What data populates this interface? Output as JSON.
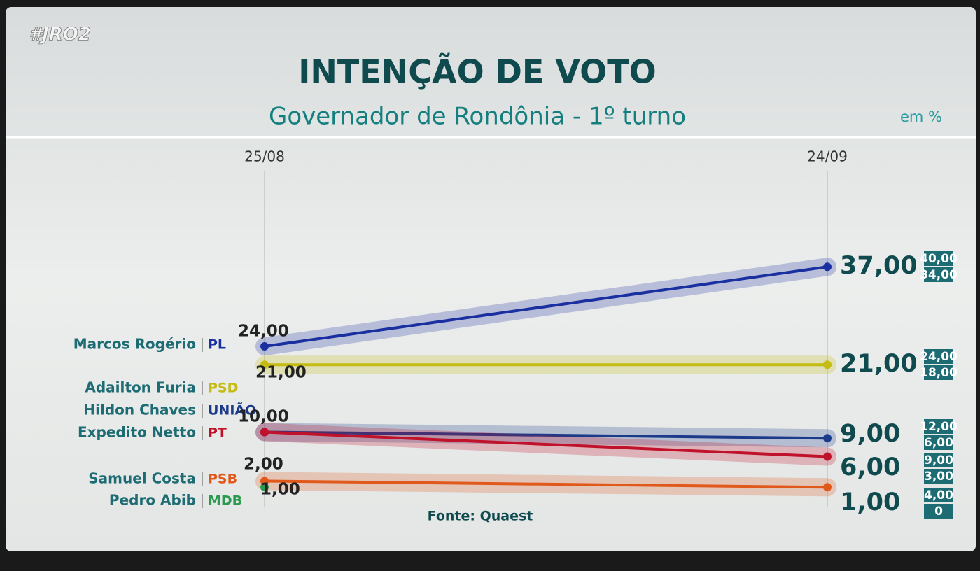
{
  "hashtag": "#JRO2",
  "chart_data": {
    "type": "line",
    "title": "INTENÇÃO DE VOTO",
    "subtitle": "Governador de Rondônia - 1º turno",
    "unit": "em %",
    "source": "Fonte: Quaest",
    "x": [
      "25/08",
      "24/09"
    ],
    "ylim": [
      0,
      40
    ],
    "grid": true,
    "series": [
      {
        "name": "Marcos Rogério",
        "party": "PL",
        "color": "#1a2fa0",
        "values": [
          24,
          37
        ],
        "value_labels": [
          "24,00",
          "37,00"
        ],
        "interval": [
          34,
          40
        ],
        "interval_labels": [
          "34,00",
          "40,00"
        ]
      },
      {
        "name": "Adailton Furia",
        "party": "PSD",
        "color": "#c4bc12",
        "values": [
          21,
          21
        ],
        "value_labels": [
          "21,00",
          "21,00"
        ],
        "interval": [
          18,
          24
        ],
        "interval_labels": [
          "18,00",
          "24,00"
        ]
      },
      {
        "name": "Hildon Chaves",
        "party": "UNIÃO",
        "color": "#1b3a8a",
        "values": [
          10,
          9
        ],
        "value_labels": [
          null,
          "9,00"
        ],
        "interval": [
          6,
          12
        ],
        "interval_labels": [
          "6,00",
          "12,00"
        ]
      },
      {
        "name": "Expedito Netto",
        "party": "PT",
        "color": "#c0122a",
        "values": [
          10,
          6
        ],
        "value_labels": [
          "10,00",
          "6,00"
        ],
        "interval": [
          3,
          9
        ],
        "interval_labels": [
          "3,00",
          "9,00"
        ]
      },
      {
        "name": "Samuel Costa",
        "party": "PSB",
        "color": "#e0581a",
        "values": [
          2,
          1
        ],
        "value_labels": [
          "2,00",
          "1,00"
        ],
        "interval": [
          0,
          4
        ],
        "interval_labels": [
          "0",
          "4,00"
        ]
      },
      {
        "name": "Pedro Abib",
        "party": "MDB",
        "color": "#2a9a50",
        "values": [
          1,
          null
        ],
        "value_labels": [
          "1,00",
          null
        ]
      }
    ]
  }
}
